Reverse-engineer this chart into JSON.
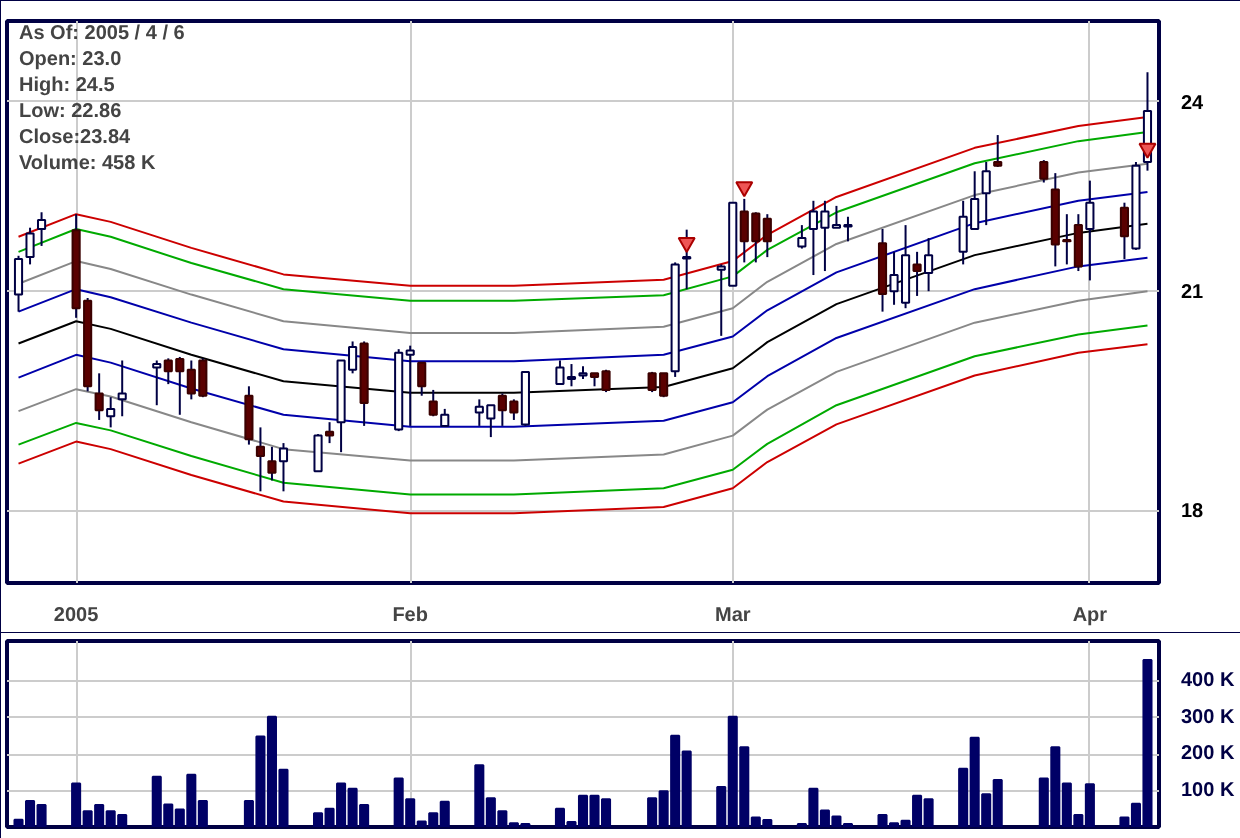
{
  "chart_data": [
    {
      "type": "candlestick",
      "log": "y",
      "grid": true,
      "x": [
        "2004-12-29",
        "2004-12-30",
        "2004-12-31",
        "2005-01-03",
        "2005-01-04",
        "2005-01-05",
        "2005-01-06",
        "2005-01-07",
        "2005-01-10",
        "2005-01-11",
        "2005-01-12",
        "2005-01-13",
        "2005-01-14",
        "2005-01-18",
        "2005-01-19",
        "2005-01-20",
        "2005-01-21",
        "2005-01-24",
        "2005-01-25",
        "2005-01-26",
        "2005-01-27",
        "2005-01-28",
        "2005-01-31",
        "2005-02-01",
        "2005-02-02",
        "2005-02-03",
        "2005-02-04",
        "2005-02-07",
        "2005-02-08",
        "2005-02-09",
        "2005-02-10",
        "2005-02-11",
        "2005-02-14",
        "2005-02-15",
        "2005-02-16",
        "2005-02-17",
        "2005-02-18",
        "2005-02-22",
        "2005-02-23",
        "2005-02-24",
        "2005-02-25",
        "2005-02-28",
        "2005-03-01",
        "2005-03-02",
        "2005-03-03",
        "2005-03-04",
        "2005-03-07",
        "2005-03-08",
        "2005-03-09",
        "2005-03-10",
        "2005-03-11",
        "2005-03-14",
        "2005-03-15",
        "2005-03-16",
        "2005-03-17",
        "2005-03-18",
        "2005-03-21",
        "2005-03-22",
        "2005-03-23",
        "2005-03-24",
        "2005-03-28",
        "2005-03-29",
        "2005-03-30",
        "2005-03-31",
        "2005-04-01",
        "2005-04-04",
        "2005-04-05",
        "2005-04-06"
      ],
      "ohlc": [
        [
          20.95,
          21.53,
          20.7,
          21.48
        ],
        [
          21.51,
          21.96,
          21.4,
          21.87
        ],
        [
          21.94,
          22.2,
          21.68,
          22.08
        ],
        [
          21.92,
          22.17,
          20.61,
          20.75
        ],
        [
          20.86,
          20.9,
          19.57,
          19.64
        ],
        [
          19.54,
          19.82,
          19.18,
          19.31
        ],
        [
          19.23,
          19.49,
          19.08,
          19.33
        ],
        [
          19.46,
          20.0,
          19.23,
          19.54
        ],
        [
          19.9,
          20.0,
          19.38,
          19.95
        ],
        [
          20.0,
          20.03,
          19.67,
          19.85
        ],
        [
          20.02,
          20.05,
          19.25,
          19.85
        ],
        [
          19.87,
          20.0,
          19.46,
          19.54
        ],
        [
          20.0,
          20.03,
          19.49,
          19.51
        ],
        [
          19.51,
          19.64,
          18.85,
          18.92
        ],
        [
          18.82,
          19.08,
          18.24,
          18.7
        ],
        [
          18.63,
          18.82,
          18.38,
          18.48
        ],
        [
          18.63,
          18.87,
          18.24,
          18.8
        ],
        [
          18.5,
          18.99,
          18.5,
          18.97
        ],
        [
          19.02,
          19.15,
          18.87,
          18.97
        ],
        [
          19.15,
          20.0,
          18.75,
          20.0
        ],
        [
          19.87,
          20.27,
          19.82,
          20.19
        ],
        [
          20.24,
          20.27,
          19.1,
          19.41
        ],
        [
          19.05,
          20.16,
          19.03,
          20.11
        ],
        [
          20.08,
          20.21,
          19.1,
          20.14
        ],
        [
          19.97,
          19.97,
          19.51,
          19.64
        ],
        [
          19.43,
          19.59,
          19.23,
          19.25
        ],
        [
          19.1,
          19.33,
          19.1,
          19.25
        ],
        [
          19.28,
          19.46,
          19.1,
          19.36
        ],
        [
          19.2,
          19.38,
          18.95,
          19.38
        ],
        [
          19.51,
          19.54,
          19.1,
          19.31
        ],
        [
          19.43,
          19.46,
          19.18,
          19.28
        ],
        [
          19.12,
          19.84,
          19.1,
          19.84
        ],
        [
          19.67,
          20.0,
          19.67,
          19.9
        ],
        [
          19.74,
          19.95,
          19.64,
          19.77
        ],
        [
          19.79,
          19.92,
          19.74,
          19.82
        ],
        [
          19.82,
          19.82,
          19.64,
          19.77
        ],
        [
          19.85,
          19.87,
          19.56,
          19.59
        ],
        [
          19.82,
          19.84,
          19.56,
          19.59
        ],
        [
          19.82,
          19.82,
          19.49,
          19.51
        ],
        [
          19.85,
          21.43,
          19.77,
          21.4
        ],
        [
          21.49,
          21.93,
          21.03,
          21.51
        ],
        [
          21.32,
          21.4,
          20.35,
          21.37
        ],
        [
          21.08,
          22.35,
          21.08,
          22.35
        ],
        [
          22.21,
          22.41,
          21.43,
          21.75
        ],
        [
          22.18,
          22.2,
          21.43,
          21.75
        ],
        [
          22.1,
          22.17,
          21.51,
          21.75
        ],
        [
          21.67,
          22.0,
          21.64,
          21.8
        ],
        [
          21.94,
          22.38,
          21.24,
          22.21
        ],
        [
          21.96,
          22.38,
          21.3,
          22.21
        ],
        [
          21.96,
          22.3,
          21.96,
          22.0
        ],
        [
          21.98,
          22.13,
          21.75,
          22.0
        ],
        [
          21.72,
          21.94,
          20.7,
          20.96
        ],
        [
          21.0,
          21.59,
          20.8,
          21.24
        ],
        [
          20.83,
          22.0,
          20.75,
          21.54
        ],
        [
          21.4,
          21.59,
          20.93,
          21.3
        ],
        [
          21.27,
          21.8,
          21.0,
          21.54
        ],
        [
          21.59,
          22.38,
          21.4,
          22.13
        ],
        [
          21.94,
          22.85,
          21.94,
          22.41
        ],
        [
          22.5,
          23.0,
          22.0,
          22.85
        ],
        [
          23.0,
          23.44,
          22.92,
          22.94
        ],
        [
          23.0,
          23.03,
          22.67,
          22.73
        ],
        [
          22.56,
          22.82,
          21.37,
          21.7
        ],
        [
          21.77,
          22.17,
          21.4,
          21.75
        ],
        [
          22.0,
          22.17,
          21.3,
          21.37
        ],
        [
          21.94,
          22.7,
          21.16,
          22.35
        ],
        [
          22.27,
          22.35,
          21.48,
          21.83
        ],
        [
          21.64,
          23.0,
          21.62,
          22.94
        ],
        [
          23.0,
          24.5,
          22.86,
          23.84
        ]
      ],
      "series": [
        {
          "type": "line",
          "color": "#cc0000",
          "x": [
            "2004-12-29",
            "2005-01-03",
            "2005-01-06",
            "2005-01-13",
            "2005-01-21",
            "2005-02-01",
            "2005-02-10",
            "2005-02-23",
            "2005-03-01",
            "2005-03-04",
            "2005-03-10",
            "2005-03-22",
            "2005-03-31",
            "2005-04-06"
          ],
          "values": [
            21.82,
            22.17,
            22.05,
            21.65,
            21.25,
            21.08,
            21.08,
            21.17,
            21.45,
            21.85,
            22.44,
            23.23,
            23.59,
            23.74
          ]
        },
        {
          "type": "line",
          "color": "#00aa00",
          "x": [
            "2004-12-29",
            "2005-01-03",
            "2005-01-06",
            "2005-01-13",
            "2005-01-21",
            "2005-02-01",
            "2005-02-10",
            "2005-02-23",
            "2005-03-01",
            "2005-03-04",
            "2005-03-10",
            "2005-03-22",
            "2005-03-31",
            "2005-04-06"
          ],
          "values": [
            21.59,
            21.94,
            21.82,
            21.42,
            21.03,
            20.86,
            20.86,
            20.94,
            21.22,
            21.62,
            22.2,
            22.98,
            23.34,
            23.49
          ]
        },
        {
          "type": "line",
          "color": "#888888",
          "x": [
            "2004-12-29",
            "2005-01-03",
            "2005-01-06",
            "2005-01-13",
            "2005-01-21",
            "2005-02-01",
            "2005-02-10",
            "2005-02-23",
            "2005-03-01",
            "2005-03-04",
            "2005-03-10",
            "2005-03-22",
            "2005-03-31",
            "2005-04-06"
          ],
          "values": [
            21.11,
            21.45,
            21.33,
            20.95,
            20.56,
            20.39,
            20.39,
            20.48,
            20.75,
            21.14,
            21.71,
            22.47,
            22.83,
            22.97
          ]
        },
        {
          "type": "line",
          "color": "#0000aa",
          "x": [
            "2004-12-29",
            "2005-01-03",
            "2005-01-06",
            "2005-01-13",
            "2005-01-21",
            "2005-02-01",
            "2005-02-10",
            "2005-02-23",
            "2005-03-01",
            "2005-03-04",
            "2005-03-10",
            "2005-03-22",
            "2005-03-31",
            "2005-04-06"
          ],
          "values": [
            20.7,
            21.03,
            20.91,
            20.54,
            20.16,
            19.99,
            19.99,
            20.08,
            20.34,
            20.72,
            21.28,
            22.03,
            22.38,
            22.52
          ]
        },
        {
          "type": "line",
          "color": "#000000",
          "x": [
            "2004-12-29",
            "2005-01-03",
            "2005-01-06",
            "2005-01-13",
            "2005-01-21",
            "2005-02-01",
            "2005-02-10",
            "2005-02-23",
            "2005-03-01",
            "2005-03-04",
            "2005-03-10",
            "2005-03-22",
            "2005-03-31",
            "2005-04-06"
          ],
          "values": [
            20.24,
            20.56,
            20.45,
            20.08,
            19.71,
            19.55,
            19.55,
            19.63,
            19.89,
            20.26,
            20.81,
            21.54,
            21.88,
            22.02
          ]
        },
        {
          "type": "line",
          "color": "#0000aa",
          "x": [
            "2004-12-29",
            "2005-01-03",
            "2005-01-06",
            "2005-01-13",
            "2005-01-21",
            "2005-02-01",
            "2005-02-10",
            "2005-02-23",
            "2005-03-01",
            "2005-03-04",
            "2005-03-10",
            "2005-03-22",
            "2005-03-31",
            "2005-04-06"
          ],
          "values": [
            19.76,
            20.08,
            19.97,
            19.61,
            19.25,
            19.09,
            19.09,
            19.17,
            19.42,
            19.78,
            20.32,
            21.03,
            21.37,
            21.5
          ]
        },
        {
          "type": "line",
          "color": "#888888",
          "x": [
            "2004-12-29",
            "2005-01-03",
            "2005-01-06",
            "2005-01-13",
            "2005-01-21",
            "2005-02-01",
            "2005-02-10",
            "2005-02-23",
            "2005-03-01",
            "2005-03-04",
            "2005-03-10",
            "2005-03-22",
            "2005-03-31",
            "2005-04-06"
          ],
          "values": [
            19.3,
            19.6,
            19.5,
            19.15,
            18.79,
            18.64,
            18.64,
            18.72,
            18.97,
            19.32,
            19.84,
            20.54,
            20.86,
            21.0
          ]
        },
        {
          "type": "line",
          "color": "#00aa00",
          "x": [
            "2004-12-29",
            "2005-01-03",
            "2005-01-06",
            "2005-01-13",
            "2005-01-21",
            "2005-02-01",
            "2005-02-10",
            "2005-02-23",
            "2005-03-01",
            "2005-03-04",
            "2005-03-10",
            "2005-03-22",
            "2005-03-31",
            "2005-04-06"
          ],
          "values": [
            18.85,
            19.14,
            19.04,
            18.7,
            18.35,
            18.2,
            18.2,
            18.28,
            18.52,
            18.86,
            19.38,
            20.06,
            20.37,
            20.5
          ]
        },
        {
          "type": "line",
          "color": "#cc0000",
          "x": [
            "2004-12-29",
            "2005-01-03",
            "2005-01-06",
            "2005-01-13",
            "2005-01-21",
            "2005-02-01",
            "2005-02-10",
            "2005-02-23",
            "2005-03-01",
            "2005-03-04",
            "2005-03-10",
            "2005-03-22",
            "2005-03-31",
            "2005-04-06"
          ],
          "values": [
            18.6,
            18.89,
            18.79,
            18.45,
            18.11,
            17.96,
            17.96,
            18.04,
            18.28,
            18.62,
            19.12,
            19.79,
            20.11,
            20.23
          ]
        },
        {
          "type": "scatter",
          "marker": "triangle",
          "color": "#ee5555",
          "x": [
            "2005-02-25",
            "2005-03-02",
            "2005-04-06"
          ],
          "values": [
            21.73,
            22.6,
            23.22
          ]
        }
      ],
      "ylim": [
        17.1,
        25.4
      ],
      "yticks": [
        18,
        21,
        24
      ],
      "xlim": [
        "2004-12-28",
        "2005-04-07"
      ],
      "xticks": [
        {
          "value": "2005-01-03",
          "label": "2005"
        },
        {
          "value": "2005-02-01",
          "label": "Feb"
        },
        {
          "value": "2005-03-01",
          "label": "Mar"
        },
        {
          "value": "2005-04-01",
          "label": "Apr"
        }
      ],
      "annotations": [
        "As Of: 2005 / 4 / 6",
        "Open: 23.0",
        "High: 24.5",
        "Low: 22.86",
        "Close:23.84",
        "Volume: 458 K"
      ]
    },
    {
      "type": "bar",
      "color": "#000066",
      "grid": true,
      "tick_labels": "y",
      "x": [
        "2004-12-29",
        "2004-12-30",
        "2004-12-31",
        "2005-01-03",
        "2005-01-04",
        "2005-01-05",
        "2005-01-06",
        "2005-01-07",
        "2005-01-10",
        "2005-01-11",
        "2005-01-12",
        "2005-01-13",
        "2005-01-14",
        "2005-01-18",
        "2005-01-19",
        "2005-01-20",
        "2005-01-21",
        "2005-01-24",
        "2005-01-25",
        "2005-01-26",
        "2005-01-27",
        "2005-01-28",
        "2005-01-31",
        "2005-02-01",
        "2005-02-02",
        "2005-02-03",
        "2005-02-04",
        "2005-02-07",
        "2005-02-08",
        "2005-02-09",
        "2005-02-10",
        "2005-02-11",
        "2005-02-14",
        "2005-02-15",
        "2005-02-16",
        "2005-02-17",
        "2005-02-18",
        "2005-02-22",
        "2005-02-23",
        "2005-02-24",
        "2005-02-25",
        "2005-02-28",
        "2005-03-01",
        "2005-03-02",
        "2005-03-03",
        "2005-03-04",
        "2005-03-07",
        "2005-03-08",
        "2005-03-09",
        "2005-03-10",
        "2005-03-11",
        "2005-03-14",
        "2005-03-15",
        "2005-03-16",
        "2005-03-17",
        "2005-03-18",
        "2005-03-21",
        "2005-03-22",
        "2005-03-23",
        "2005-03-24",
        "2005-03-28",
        "2005-03-29",
        "2005-03-30",
        "2005-03-31",
        "2005-04-01",
        "2005-04-04",
        "2005-04-05",
        "2005-04-06"
      ],
      "values": [
        20,
        71,
        60,
        119,
        43,
        60,
        43,
        33,
        138,
        62,
        48,
        143,
        71,
        71,
        248,
        302,
        157,
        38,
        50,
        119,
        105,
        60,
        133,
        76,
        15,
        38,
        69,
        169,
        79,
        43,
        10,
        8,
        50,
        14,
        86,
        86,
        76,
        79,
        98,
        250,
        207,
        110,
        302,
        219,
        26,
        19,
        8,
        105,
        45,
        29,
        8,
        33,
        10,
        17,
        86,
        76,
        160,
        245,
        90,
        129,
        133,
        219,
        119,
        33,
        117,
        26,
        64,
        458
      ],
      "ylim": [
        0,
        510
      ],
      "xlim": [
        "2004-12-28",
        "2005-04-07"
      ],
      "yticks": [
        {
          "value": 100,
          "label": "100 K"
        },
        {
          "value": 200,
          "label": "200 K"
        },
        {
          "value": 300,
          "label": "300 K"
        },
        {
          "value": 400,
          "label": "400 K"
        }
      ],
      "xticks": [
        {
          "value": "2005-01-03",
          "label": null
        },
        {
          "value": "2005-02-01",
          "label": null
        },
        {
          "value": "2005-03-01",
          "label": null
        },
        {
          "value": "2005-04-01",
          "label": null
        }
      ]
    }
  ]
}
